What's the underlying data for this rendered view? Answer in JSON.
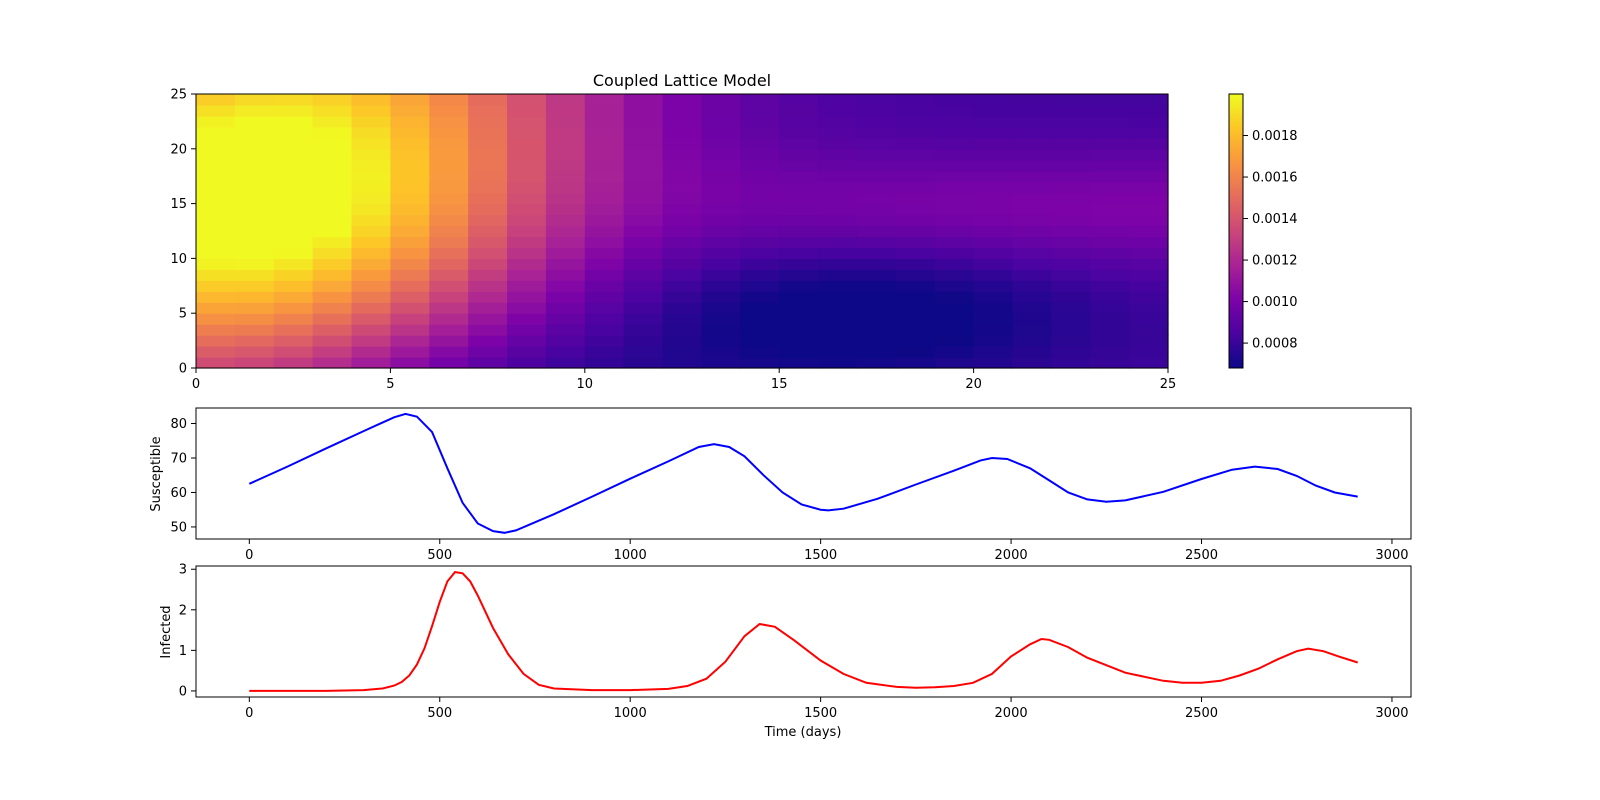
{
  "chart_data": [
    {
      "type": "heatmap",
      "title": "Coupled Lattice Model",
      "xlabel": "",
      "ylabel": "",
      "xlim": [
        0,
        25
      ],
      "ylim": [
        0,
        25
      ],
      "xticks": [
        "0",
        "5",
        "10",
        "15",
        "20",
        "25"
      ],
      "yticks": [
        "0",
        "5",
        "10",
        "15",
        "20",
        "25"
      ],
      "colormap": "plasma",
      "color_range": [
        0.00068,
        0.002
      ],
      "colorbar_ticks": [
        "0.0008",
        "0.0010",
        "0.0012",
        "0.0014",
        "0.0016",
        "0.0018"
      ],
      "field_description": "25x25 grid; high values (~0.0020) at left around y=15, low values (~0.00068) near x=17, y=5"
    },
    {
      "type": "line",
      "title": "",
      "xlabel": "",
      "ylabel": "Susceptible",
      "xlim": [
        -140,
        3050
      ],
      "ylim": [
        46.5,
        84.5
      ],
      "xticks": [
        "0",
        "500",
        "1000",
        "1500",
        "2000",
        "2500",
        "3000"
      ],
      "yticks": [
        "50",
        "60",
        "70",
        "80"
      ],
      "color": "#0000ff",
      "series": [
        {
          "x": [
            0,
            100,
            200,
            300,
            380,
            410,
            440,
            480,
            520,
            560,
            600,
            640,
            670,
            700,
            800,
            900,
            1000,
            1100,
            1180,
            1220,
            1260,
            1300,
            1350,
            1400,
            1450,
            1500,
            1520,
            1560,
            1650,
            1750,
            1850,
            1920,
            1950,
            1990,
            2050,
            2100,
            2150,
            2200,
            2250,
            2300,
            2400,
            2500,
            2580,
            2640,
            2700,
            2750,
            2800,
            2850,
            2910
          ],
          "y": [
            62.5,
            67.5,
            72.7,
            77.8,
            81.8,
            82.8,
            82.0,
            77.5,
            67.0,
            57.0,
            51.0,
            48.8,
            48.3,
            49.0,
            53.7,
            58.8,
            64.0,
            69.0,
            73.2,
            74.0,
            73.2,
            70.5,
            65.0,
            60.0,
            56.5,
            55.0,
            54.8,
            55.3,
            58.2,
            62.3,
            66.3,
            69.3,
            70.0,
            69.7,
            67.0,
            63.5,
            60.0,
            58.0,
            57.3,
            57.7,
            60.2,
            63.9,
            66.6,
            67.5,
            66.8,
            64.8,
            62.0,
            60.0,
            58.8
          ]
        }
      ]
    },
    {
      "type": "line",
      "title": "",
      "xlabel": "Time (days)",
      "ylabel": "Infected",
      "xlim": [
        -140,
        3050
      ],
      "ylim": [
        -0.15,
        3.08
      ],
      "xticks": [
        "0",
        "500",
        "1000",
        "1500",
        "2000",
        "2500",
        "3000"
      ],
      "yticks": [
        "0",
        "1",
        "2",
        "3"
      ],
      "color": "#ff0000",
      "series": [
        {
          "x": [
            0,
            100,
            200,
            300,
            350,
            380,
            400,
            420,
            440,
            460,
            480,
            500,
            520,
            540,
            560,
            580,
            600,
            640,
            680,
            720,
            760,
            800,
            900,
            1000,
            1100,
            1150,
            1200,
            1250,
            1300,
            1340,
            1380,
            1430,
            1500,
            1560,
            1620,
            1700,
            1750,
            1800,
            1850,
            1900,
            1950,
            2000,
            2050,
            2080,
            2100,
            2150,
            2200,
            2300,
            2400,
            2450,
            2500,
            2550,
            2600,
            2650,
            2700,
            2750,
            2780,
            2820,
            2860,
            2910
          ],
          "y": [
            0.0,
            0.0,
            0.0,
            0.02,
            0.06,
            0.13,
            0.22,
            0.38,
            0.65,
            1.05,
            1.6,
            2.2,
            2.7,
            2.93,
            2.9,
            2.7,
            2.35,
            1.55,
            0.9,
            0.42,
            0.15,
            0.06,
            0.02,
            0.02,
            0.05,
            0.12,
            0.3,
            0.72,
            1.35,
            1.65,
            1.58,
            1.25,
            0.75,
            0.42,
            0.2,
            0.1,
            0.08,
            0.09,
            0.12,
            0.2,
            0.42,
            0.85,
            1.15,
            1.28,
            1.26,
            1.08,
            0.82,
            0.45,
            0.25,
            0.2,
            0.2,
            0.25,
            0.38,
            0.55,
            0.78,
            0.98,
            1.04,
            0.98,
            0.85,
            0.7
          ]
        }
      ]
    }
  ]
}
